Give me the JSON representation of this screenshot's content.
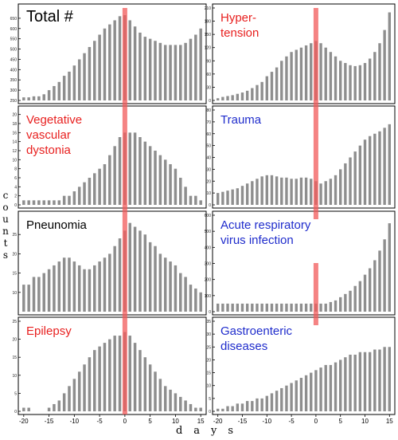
{
  "figure": {
    "ylabel": "counts",
    "xlabel": "days"
  },
  "chart_data": [
    {
      "type": "bar",
      "title": "Total #",
      "title_color": "#000000",
      "x": [
        -20,
        -19,
        -18,
        -17,
        -16,
        -15,
        -14,
        -13,
        -12,
        -11,
        -10,
        -9,
        -8,
        -7,
        -6,
        -5,
        -4,
        -3,
        -2,
        -1,
        0,
        1,
        2,
        3,
        4,
        5,
        6,
        7,
        8,
        9,
        10,
        11,
        12,
        13,
        14,
        15
      ],
      "values": [
        265,
        265,
        270,
        270,
        280,
        300,
        320,
        340,
        370,
        390,
        420,
        450,
        480,
        510,
        540,
        570,
        600,
        620,
        640,
        660,
        665,
        640,
        610,
        580,
        560,
        550,
        540,
        530,
        520,
        520,
        520,
        520,
        530,
        550,
        570,
        600
      ],
      "ylim": [
        250,
        700
      ],
      "yticks": [
        250,
        300,
        350,
        400,
        450,
        500,
        550,
        600,
        650
      ],
      "xticks": [],
      "xlim": [
        -20.6,
        15.6
      ]
    },
    {
      "type": "bar",
      "title": "Hyper-\ntension",
      "title_color": "#e8201f",
      "x": [
        -20,
        -19,
        -18,
        -17,
        -16,
        -15,
        -14,
        -13,
        -12,
        -11,
        -10,
        -9,
        -8,
        -7,
        -6,
        -5,
        -4,
        -3,
        -2,
        -1,
        0,
        1,
        2,
        3,
        4,
        5,
        6,
        7,
        8,
        9,
        10,
        11,
        12,
        13,
        14,
        15
      ],
      "values": [
        5,
        8,
        10,
        12,
        15,
        18,
        22,
        28,
        35,
        42,
        55,
        65,
        75,
        90,
        100,
        110,
        115,
        120,
        125,
        130,
        135,
        130,
        120,
        110,
        100,
        90,
        85,
        80,
        78,
        80,
        85,
        95,
        110,
        130,
        160,
        200
      ],
      "ylim": [
        0,
        210
      ],
      "yticks": [
        0,
        30,
        60,
        90,
        120,
        150,
        180,
        210
      ],
      "xticks": [],
      "xlim": [
        -20.6,
        15.6
      ]
    },
    {
      "type": "bar",
      "title": "Vegetative\nvascular\ndystonia",
      "title_color": "#e8201f",
      "x": [
        -20,
        -19,
        -18,
        -17,
        -16,
        -15,
        -14,
        -13,
        -12,
        -11,
        -10,
        -9,
        -8,
        -7,
        -6,
        -5,
        -4,
        -3,
        -2,
        -1,
        0,
        1,
        2,
        3,
        4,
        5,
        6,
        7,
        8,
        9,
        10,
        11,
        12,
        13,
        14,
        15
      ],
      "values": [
        1,
        1,
        1,
        1,
        1,
        1,
        1,
        1,
        2,
        2,
        3,
        4,
        5,
        6,
        7,
        8,
        9,
        11,
        13,
        15,
        16,
        16,
        16,
        15,
        14,
        13,
        12,
        11,
        10,
        9,
        8,
        6,
        4,
        2,
        2,
        1
      ],
      "ylim": [
        0,
        21
      ],
      "yticks": [
        0,
        2,
        4,
        6,
        8,
        10,
        12,
        14,
        16,
        18,
        20
      ],
      "xticks": [],
      "xlim": [
        -20.6,
        15.6
      ]
    },
    {
      "type": "bar",
      "title": "Trauma",
      "title_color": "#1f2ccc",
      "x": [
        -20,
        -19,
        -18,
        -17,
        -16,
        -15,
        -14,
        -13,
        -12,
        -11,
        -10,
        -9,
        -8,
        -7,
        -6,
        -5,
        -4,
        -3,
        -2,
        -1,
        0,
        1,
        2,
        3,
        4,
        5,
        6,
        7,
        8,
        9,
        10,
        11,
        12,
        13,
        14,
        15
      ],
      "values": [
        10,
        11,
        12,
        13,
        14,
        16,
        18,
        20,
        22,
        24,
        25,
        25,
        24,
        23,
        23,
        22,
        22,
        23,
        23,
        22,
        20,
        18,
        20,
        22,
        25,
        30,
        35,
        40,
        45,
        50,
        55,
        58,
        60,
        62,
        65,
        68
      ],
      "ylim": [
        0,
        80
      ],
      "yticks": [
        0,
        10,
        20,
        30,
        40,
        50,
        60,
        70,
        80
      ],
      "xticks": [],
      "xlim": [
        -20.6,
        15.6
      ]
    },
    {
      "type": "bar",
      "title": "Pneunomia",
      "title_color": "#000000",
      "x": [
        -20,
        -19,
        -18,
        -17,
        -16,
        -15,
        -14,
        -13,
        -12,
        -11,
        -10,
        -9,
        -8,
        -7,
        -6,
        -5,
        -4,
        -3,
        -2,
        -1,
        0,
        1,
        2,
        3,
        4,
        5,
        6,
        7,
        8,
        9,
        10,
        11,
        12,
        13,
        14,
        15
      ],
      "values": [
        12,
        12,
        14,
        14,
        15,
        16,
        17,
        18,
        19,
        19,
        18,
        17,
        16,
        16,
        17,
        18,
        19,
        20,
        22,
        24,
        26,
        28,
        27,
        26,
        25,
        23,
        22,
        20,
        19,
        18,
        17,
        15,
        14,
        12,
        11,
        10
      ],
      "ylim": [
        5,
        30
      ],
      "yticks": [
        10,
        15,
        20,
        25
      ],
      "xticks": [],
      "xlim": [
        -20.6,
        15.6
      ]
    },
    {
      "type": "bar",
      "title": "Acute respiratory\nvirus infection",
      "title_color": "#1f2ccc",
      "x": [
        -20,
        -19,
        -18,
        -17,
        -16,
        -15,
        -14,
        -13,
        -12,
        -11,
        -10,
        -9,
        -8,
        -7,
        -6,
        -5,
        -4,
        -3,
        -2,
        -1,
        0,
        1,
        2,
        3,
        4,
        5,
        6,
        7,
        8,
        9,
        10,
        11,
        12,
        13,
        14,
        15
      ],
      "values": [
        50,
        50,
        50,
        50,
        50,
        50,
        50,
        50,
        50,
        50,
        50,
        50,
        50,
        50,
        50,
        50,
        50,
        50,
        50,
        50,
        50,
        50,
        50,
        60,
        70,
        90,
        110,
        130,
        160,
        190,
        230,
        270,
        320,
        380,
        450,
        550
      ],
      "ylim": [
        0,
        600
      ],
      "yticks": [
        0,
        100,
        200,
        300,
        400,
        500,
        600
      ],
      "xticks": [],
      "xlim": [
        -20.6,
        15.6
      ]
    },
    {
      "type": "bar",
      "title": "Epilepsy",
      "title_color": "#e8201f",
      "x": [
        -20,
        -19,
        -18,
        -17,
        -16,
        -15,
        -14,
        -13,
        -12,
        -11,
        -10,
        -9,
        -8,
        -7,
        -6,
        -5,
        -4,
        -3,
        -2,
        -1,
        0,
        1,
        2,
        3,
        4,
        5,
        6,
        7,
        8,
        9,
        10,
        11,
        12,
        13,
        14,
        15
      ],
      "values": [
        1,
        1,
        0,
        0,
        0,
        1,
        2,
        3,
        5,
        7,
        9,
        11,
        13,
        15,
        17,
        18,
        19,
        20,
        21,
        21,
        22,
        21,
        19,
        17,
        15,
        13,
        11,
        9,
        7,
        6,
        5,
        4,
        3,
        2,
        1,
        1
      ],
      "ylim": [
        0,
        25
      ],
      "yticks": [
        0,
        5,
        10,
        15,
        20,
        25
      ],
      "xticks": [
        -20,
        -15,
        -10,
        -5,
        0,
        5,
        10,
        15
      ],
      "xlim": [
        -20.6,
        15.6
      ]
    },
    {
      "type": "bar",
      "title": "Gastroenteric\ndiseases",
      "title_color": "#1f2ccc",
      "x": [
        -20,
        -19,
        -18,
        -17,
        -16,
        -15,
        -14,
        -13,
        -12,
        -11,
        -10,
        -9,
        -8,
        -7,
        -6,
        -5,
        -4,
        -3,
        -2,
        -1,
        0,
        1,
        2,
        3,
        4,
        5,
        6,
        7,
        8,
        9,
        10,
        11,
        12,
        13,
        14,
        15
      ],
      "values": [
        1,
        1,
        2,
        2,
        3,
        3,
        4,
        4,
        5,
        5,
        6,
        7,
        8,
        9,
        10,
        11,
        12,
        13,
        14,
        15,
        16,
        17,
        18,
        18,
        19,
        20,
        21,
        22,
        22,
        23,
        23,
        23,
        24,
        24,
        25,
        25
      ],
      "ylim": [
        0,
        35
      ],
      "yticks": [
        0,
        5,
        10,
        15,
        20,
        25,
        30,
        35
      ],
      "xticks": [
        -20,
        -15,
        -10,
        -5,
        0,
        5,
        10,
        15
      ],
      "xlim": [
        -20.6,
        15.6
      ]
    }
  ]
}
